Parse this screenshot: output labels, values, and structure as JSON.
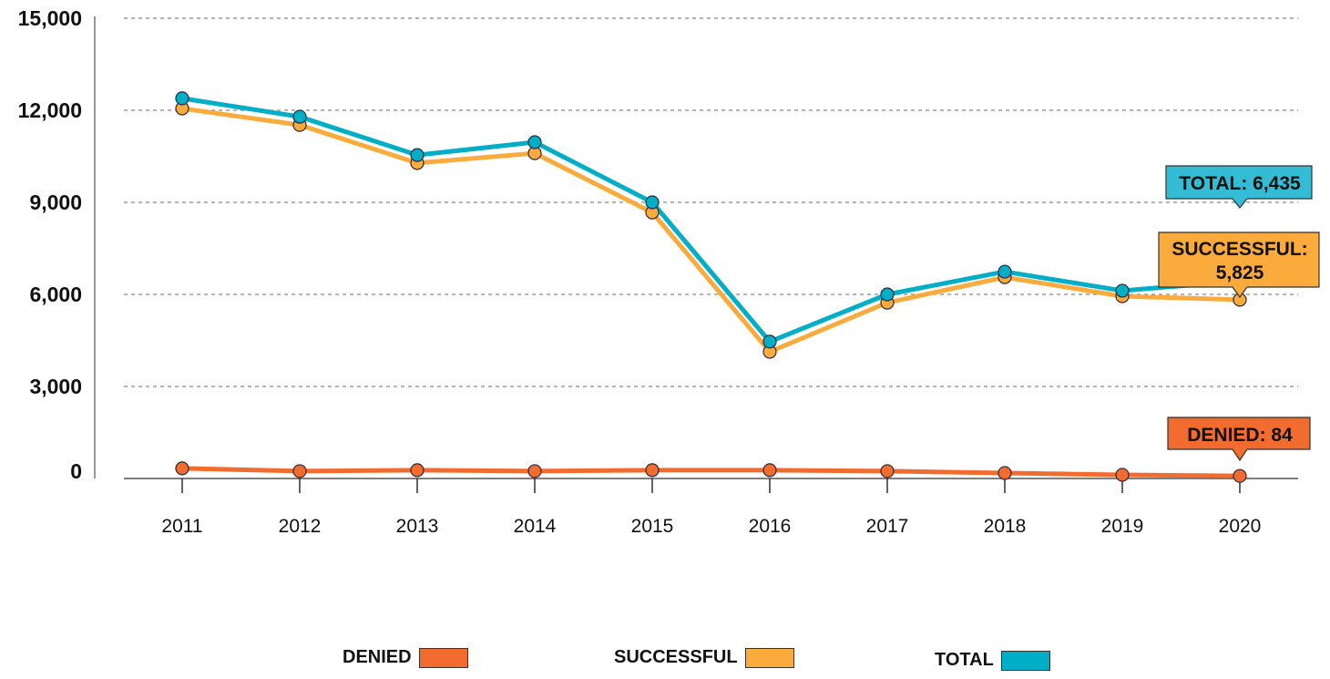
{
  "chart_data": {
    "type": "line",
    "categories": [
      "2011",
      "2012",
      "2013",
      "2014",
      "2015",
      "2016",
      "2017",
      "2018",
      "2019",
      "2020"
    ],
    "series": [
      {
        "name": "DENIED",
        "color": "#f26b2f",
        "values": [
          330,
          240,
          270,
          240,
          270,
          270,
          240,
          180,
          120,
          84
        ]
      },
      {
        "name": "SUCCESSFUL",
        "color": "#fbab3c",
        "values": [
          12060,
          11520,
          10280,
          10600,
          8670,
          4130,
          5730,
          6560,
          5940,
          5825
        ]
      },
      {
        "name": "TOTAL",
        "color": "#00aec7",
        "values": [
          12390,
          11790,
          10540,
          10960,
          9000,
          4460,
          6000,
          6740,
          6120,
          6435
        ]
      }
    ],
    "ylim": [
      0,
      15000
    ],
    "yticks": [
      "0",
      "3,000",
      "6,000",
      "9,000",
      "12,000",
      "15,000"
    ],
    "ytick_values": [
      0,
      3000,
      6000,
      9000,
      12000,
      15000
    ],
    "grid": true,
    "legend_position": "bottom",
    "annotations": [
      {
        "series": "TOTAL",
        "text": "TOTAL: 6,435",
        "color": "#33bcd4"
      },
      {
        "series": "SUCCESSFUL",
        "text": "SUCCESSFUL:",
        "text2": "5,825",
        "color": "#fbab3c"
      },
      {
        "series": "DENIED",
        "text": "DENIED: 84",
        "color": "#f26b2f"
      }
    ]
  },
  "legend": [
    {
      "label": "DENIED",
      "color": "#f26b2f"
    },
    {
      "label": "SUCCESSFUL",
      "color": "#fbab3c"
    },
    {
      "label": "TOTAL",
      "color": "#00aec7"
    }
  ]
}
